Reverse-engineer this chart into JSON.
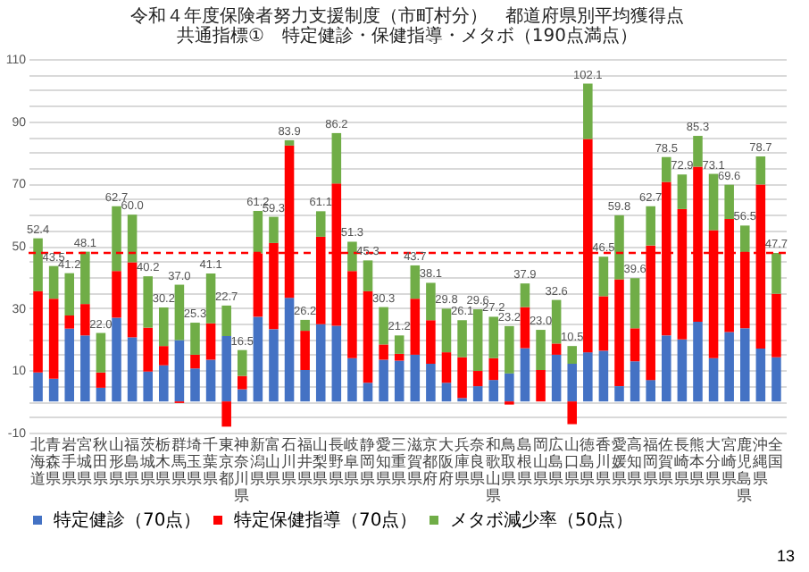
{
  "chart_data": {
    "type": "bar",
    "stacked": true,
    "title": "令和４年度保険者努力支援制度（市町村分）　都道府県別平均獲得点",
    "subtitle": "共通指標①　特定健診・保健指導・メタボ（190点満点）",
    "categories": [
      "北海道",
      "青森県",
      "岩手県",
      "宮城県",
      "秋田県",
      "山形県",
      "福島県",
      "茨城県",
      "栃木県",
      "群馬県",
      "埼玉県",
      "千葉県",
      "東京都",
      "神奈川県",
      "新潟県",
      "富山県",
      "石川県",
      "福井県",
      "山梨県",
      "長野県",
      "岐阜県",
      "静岡県",
      "愛知県",
      "三重県",
      "滋賀県",
      "京都府",
      "大阪府",
      "兵庫県",
      "奈良県",
      "和歌山県",
      "鳥取県",
      "島根県",
      "岡山県",
      "広島県",
      "山口県",
      "徳島県",
      "香川県",
      "愛媛県",
      "高知県",
      "福岡県",
      "佐賀県",
      "長崎県",
      "熊本県",
      "大分県",
      "宮崎県",
      "鹿児島県",
      "沖縄県",
      "全国"
    ],
    "series": [
      {
        "name": "特定健診（70点）",
        "color": "#4472c4",
        "values": [
          9.3,
          7.3,
          23.4,
          21.2,
          4.4,
          26.9,
          20.6,
          9.6,
          11.6,
          19.7,
          10.6,
          13.4,
          21.0,
          3.9,
          27.2,
          23.2,
          33.3,
          10.1,
          24.8,
          24.3,
          13.9,
          6.0,
          13.4,
          13.1,
          15.0,
          12.1,
          6.0,
          1.1,
          4.9,
          6.9,
          9.0,
          17.1,
          0,
          15.0,
          12.1,
          15.8,
          16.3,
          4.9,
          12.9,
          6.9,
          21.2,
          19.9,
          25.6,
          13.9,
          22.3,
          23.5,
          17.0,
          14.2
        ]
      },
      {
        "name": "特定保健指導（70点）",
        "color": "#ff0000",
        "values": [
          26.1,
          25.7,
          4.2,
          10.1,
          4.9,
          15.0,
          24.1,
          14.1,
          6.2,
          -0.5,
          4.4,
          11.7,
          -8.1,
          4.3,
          20.4,
          27.7,
          48.9,
          12.6,
          28.1,
          45.7,
          28.0,
          29.4,
          4.9,
          2.2,
          18.0,
          14.0,
          9.8,
          13.1,
          4.9,
          7.0,
          -1.0,
          13.2,
          10.1,
          3.6,
          -7.3,
          68.5,
          17.5,
          34.3,
          10.6,
          43.2,
          49.3,
          41.9,
          49.8,
          41.1,
          36.3,
          24.5,
          52.7,
          20.4
        ]
      },
      {
        "name": "メタボ減少率（50点）",
        "color": "#70ad47",
        "values": [
          17.0,
          10.5,
          13.6,
          16.8,
          12.7,
          20.8,
          15.3,
          16.5,
          12.4,
          17.8,
          10.3,
          16.0,
          9.8,
          8.3,
          13.6,
          8.4,
          1.7,
          3.5,
          8.2,
          16.2,
          9.4,
          9.9,
          12.0,
          5.9,
          10.7,
          12.0,
          14.0,
          11.9,
          19.8,
          13.3,
          15.2,
          7.6,
          12.9,
          14.0,
          5.7,
          17.8,
          12.7,
          20.6,
          16.1,
          12.6,
          8.0,
          11.1,
          9.9,
          18.1,
          11.0,
          8.5,
          9.0,
          13.1
        ]
      }
    ],
    "totals": [
      "52.4",
      "43.5",
      "41.2",
      "48.1",
      "22.0",
      "62.7",
      "60.0",
      "40.2",
      "30.2",
      "37.0",
      "25.3",
      "41.1",
      "22.7",
      "16.5",
      "61.2",
      "59.3",
      "83.9",
      "26.2",
      "61.1",
      "86.2",
      "51.3",
      "45.3",
      "30.3",
      "21.2",
      "43.7",
      "38.1",
      "29.8",
      "26.1",
      "29.6",
      "27.2",
      "23.2",
      "37.9",
      "23.0",
      "32.6",
      "10.5",
      "102.1",
      "46.5",
      "59.8",
      "39.6",
      "62.7",
      "78.5",
      "72.9",
      "85.3",
      "73.1",
      "69.6",
      "56.5",
      "78.7",
      "47.7"
    ],
    "ylim": [
      -10,
      110
    ],
    "yticks": [
      -10,
      {
        "value": -5,
        "label": null
      },
      {
        "value": 0,
        "label": null
      },
      {
        "value": 5,
        "label": null
      },
      10,
      {
        "value": 15,
        "label": null
      },
      {
        "value": 20,
        "label": null
      },
      {
        "value": 25,
        "label": null
      },
      30,
      {
        "value": 35,
        "label": null
      },
      {
        "value": 40,
        "label": null
      },
      {
        "value": 45,
        "label": null
      },
      50,
      {
        "value": 55,
        "label": null
      },
      {
        "value": 60,
        "label": null
      },
      {
        "value": 65,
        "label": null
      },
      70,
      {
        "value": 75,
        "label": null
      },
      {
        "value": 80,
        "label": null
      },
      {
        "value": 85,
        "label": null
      },
      90,
      {
        "value": 95,
        "label": null
      },
      {
        "value": 100,
        "label": null
      },
      {
        "value": 105,
        "label": null
      },
      110
    ],
    "ref_lines": [
      {
        "axis": "y",
        "value": 47.7,
        "color": "#ff0000",
        "line_style": "dashed"
      }
    ],
    "grid": "y",
    "legend": "bottom",
    "annotations": [
      "13"
    ]
  }
}
